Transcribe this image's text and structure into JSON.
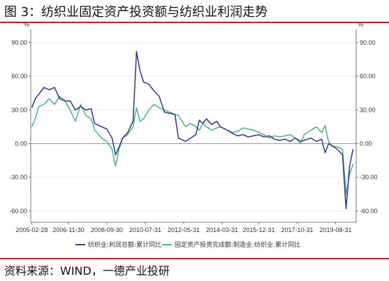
{
  "figure": {
    "title": "图 3：纺织业固定资产投资额与纺织业利润走势",
    "source": "资料来源：WIND，一德产业投研"
  },
  "chart_data": {
    "type": "line",
    "y_unit_left": "%",
    "y_unit_right": "%",
    "ylim": [
      -70,
      98
    ],
    "y_ticks": [
      "90.00",
      "60.00",
      "30.00",
      "0.00",
      "-30.00",
      "-60.00"
    ],
    "y_tick_values": [
      90,
      60,
      30,
      0,
      -30,
      -60
    ],
    "x_tick_labels": [
      "2005-02-28",
      "2006-11-30",
      "2008-09-30",
      "2010-07-31",
      "2012-05-31",
      "2014-03-31",
      "2015-12-31",
      "2017-10-31",
      "2019-08-31"
    ],
    "grid": "horizontal",
    "legend_position": "bottom",
    "colors": {
      "profit": "#3c3f8c",
      "fai": "#4fb593",
      "axis": "#555555",
      "rule": "#b3272d"
    },
    "series": [
      {
        "name": "纺织业:利润总额:累计同比",
        "x": [
          "2005-02",
          "2005-04",
          "2005-06",
          "2005-09",
          "2005-12",
          "2006-03",
          "2006-06",
          "2006-09",
          "2006-12",
          "2007-03",
          "2007-06",
          "2007-09",
          "2007-12",
          "2008-02",
          "2008-06",
          "2008-09",
          "2008-12",
          "2009-02",
          "2009-04",
          "2009-06",
          "2009-09",
          "2009-12",
          "2010-02",
          "2010-04",
          "2010-06",
          "2010-09",
          "2010-12",
          "2011-03",
          "2011-06",
          "2011-09",
          "2011-12",
          "2012-02",
          "2012-06",
          "2012-09",
          "2012-12",
          "2013-02",
          "2013-04",
          "2013-06",
          "2013-09",
          "2013-12",
          "2014-02",
          "2014-06",
          "2014-09",
          "2014-12",
          "2015-03",
          "2015-06",
          "2015-09",
          "2015-12",
          "2016-03",
          "2016-06",
          "2016-09",
          "2016-12",
          "2017-03",
          "2017-06",
          "2017-09",
          "2017-12",
          "2018-02",
          "2018-06",
          "2018-09",
          "2018-12",
          "2019-02",
          "2019-04",
          "2019-06",
          "2019-09",
          "2019-12",
          "2020-02",
          "2020-04",
          "2020-06"
        ],
        "values": [
          32,
          40,
          44,
          50,
          48,
          50,
          40,
          38,
          38,
          30,
          33,
          30,
          31,
          18,
          15,
          13,
          5,
          -10,
          -3,
          5,
          10,
          20,
          82,
          65,
          55,
          53,
          47,
          42,
          28,
          27,
          26,
          5,
          2,
          5,
          8,
          21,
          18,
          22,
          17,
          20,
          15,
          12,
          9,
          7,
          8,
          6,
          7,
          8,
          6,
          7,
          4,
          3,
          4,
          2,
          5,
          2,
          3,
          5,
          2,
          4,
          -8,
          0,
          -2,
          -5,
          -10,
          -58,
          -20,
          -5
        ]
      },
      {
        "name": "固定资产投资完成额:制造业:纺织业:累计同比",
        "x": [
          "2005-02",
          "2005-04",
          "2005-06",
          "2005-09",
          "2005-12",
          "2006-03",
          "2006-06",
          "2006-09",
          "2006-12",
          "2007-03",
          "2007-06",
          "2007-09",
          "2007-12",
          "2008-02",
          "2008-06",
          "2008-09",
          "2008-12",
          "2009-02",
          "2009-04",
          "2009-06",
          "2009-09",
          "2009-12",
          "2010-02",
          "2010-04",
          "2010-06",
          "2010-09",
          "2010-12",
          "2011-03",
          "2011-06",
          "2011-09",
          "2011-12",
          "2012-02",
          "2012-06",
          "2012-09",
          "2012-12",
          "2013-02",
          "2013-04",
          "2013-06",
          "2013-09",
          "2013-12",
          "2014-02",
          "2014-06",
          "2014-09",
          "2014-12",
          "2015-03",
          "2015-06",
          "2015-09",
          "2015-12",
          "2016-03",
          "2016-06",
          "2016-09",
          "2016-12",
          "2017-03",
          "2017-06",
          "2017-09",
          "2017-12",
          "2018-02",
          "2018-06",
          "2018-09",
          "2018-12",
          "2019-02",
          "2019-04",
          "2019-06",
          "2019-09",
          "2019-12",
          "2020-02",
          "2020-04",
          "2020-06"
        ],
        "values": [
          15,
          22,
          33,
          35,
          40,
          35,
          42,
          38,
          30,
          20,
          35,
          25,
          22,
          12,
          5,
          2,
          -5,
          -20,
          -5,
          5,
          8,
          15,
          32,
          20,
          22,
          30,
          35,
          32,
          30,
          28,
          26,
          25,
          15,
          18,
          15,
          12,
          18,
          15,
          12,
          14,
          15,
          12,
          10,
          11,
          14,
          13,
          12,
          10,
          8,
          5,
          7,
          6,
          7,
          8,
          5,
          0,
          8,
          12,
          15,
          10,
          16,
          2,
          -2,
          -3,
          -5,
          -45,
          -28,
          -18
        ]
      }
    ]
  }
}
